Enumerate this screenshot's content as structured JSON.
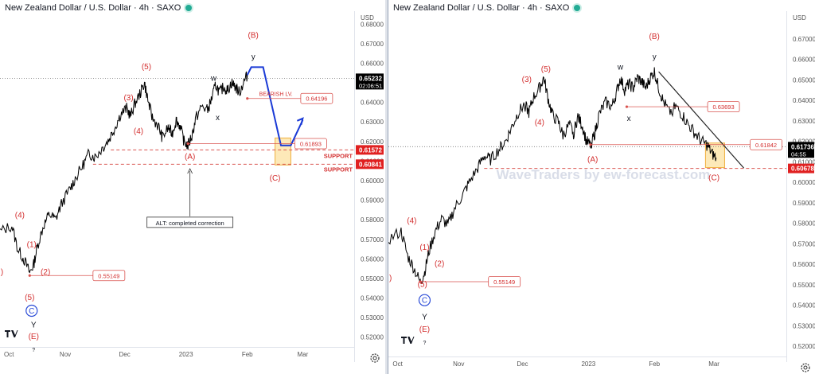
{
  "colors": {
    "wave_label": "#d32f2f",
    "price_line": "#000000",
    "projection": "#1a3ad6",
    "badge_black": "#000000",
    "badge_red": "#e02020",
    "box_fill": "#fde9b8",
    "box_stroke": "#f0b040",
    "support": "#d9534f",
    "trendline": "#222222",
    "zone_label": "#d32f2f",
    "circle": "#2a4bd7",
    "live": "#22ab94"
  },
  "chart_data": [
    {
      "type": "line",
      "title": "New Zealand Dollar / U.S. Dollar · 4h · SAXO",
      "currency": "USD",
      "ylim": [
        0.515,
        0.685
      ],
      "y_ticks": [
        0.52,
        0.53,
        0.54,
        0.55,
        0.56,
        0.57,
        0.58,
        0.59,
        0.6,
        0.61,
        0.62,
        0.63,
        0.64,
        0.65,
        0.66,
        0.67,
        0.68
      ],
      "y_tick_labels": [
        "0.52000",
        "0.53000",
        "0.54000",
        "0.55000",
        "0.56000",
        "0.57000",
        "0.58000",
        "0.59000",
        "0.60000",
        "0.61000",
        "0.62000",
        "0.63000",
        "0.64000",
        "0.65000",
        "0.66000",
        "0.67000",
        "0.68000"
      ],
      "x_ticks": [
        {
          "x": 0,
          "label": "Oct"
        },
        {
          "x": 31,
          "label": "Nov"
        },
        {
          "x": 61,
          "label": "Dec"
        },
        {
          "x": 92,
          "label": "2023"
        },
        {
          "x": 123,
          "label": "Feb"
        },
        {
          "x": 151,
          "label": "Mar"
        }
      ],
      "xlim": [
        -2,
        177
      ],
      "series": [
        {
          "values": [
            [
              -2,
              0.574
            ],
            [
              4,
              0.577
            ],
            [
              7,
              0.565
            ],
            [
              10,
              0.56
            ],
            [
              13,
              0.553
            ],
            [
              15,
              0.557
            ],
            [
              17,
              0.567
            ],
            [
              20,
              0.577
            ],
            [
              23,
              0.583
            ],
            [
              26,
              0.58
            ],
            [
              29,
              0.588
            ],
            [
              33,
              0.595
            ],
            [
              36,
              0.601
            ],
            [
              40,
              0.608
            ],
            [
              43,
              0.614
            ],
            [
              46,
              0.612
            ],
            [
              50,
              0.617
            ],
            [
              53,
              0.621
            ],
            [
              56,
              0.627
            ],
            [
              59,
              0.634
            ],
            [
              62,
              0.637
            ],
            [
              64,
              0.633
            ],
            [
              66,
              0.639
            ],
            [
              69,
              0.645
            ],
            [
              71,
              0.65
            ],
            [
              73,
              0.64
            ],
            [
              75,
              0.632
            ],
            [
              78,
              0.628
            ],
            [
              80,
              0.622
            ],
            [
              83,
              0.627
            ],
            [
              85,
              0.624
            ],
            [
              87,
              0.631
            ],
            [
              89,
              0.628
            ],
            [
              91,
              0.62
            ],
            [
              93,
              0.618
            ],
            [
              95,
              0.623
            ],
            [
              97,
              0.632
            ],
            [
              100,
              0.638
            ],
            [
              103,
              0.636
            ],
            [
              105,
              0.642
            ],
            [
              107,
              0.649
            ],
            [
              109,
              0.645
            ],
            [
              111,
              0.648
            ],
            [
              113,
              0.646
            ],
            [
              115,
              0.65
            ],
            [
              117,
              0.648
            ],
            [
              119,
              0.645
            ],
            [
              121,
              0.65
            ],
            [
              123,
              0.654
            ]
          ]
        }
      ],
      "projection_path": [
        [
          123,
          0.654
        ],
        [
          125,
          0.658
        ],
        [
          131,
          0.658
        ],
        [
          140,
          0.618
        ],
        [
          145,
          0.618
        ],
        [
          151,
          0.631
        ]
      ],
      "price_badges": [
        {
          "label": "0.65232",
          "sub": "02:06:51",
          "value": 0.6523,
          "style": "black"
        },
        {
          "label": "0.61572",
          "value": 0.6157,
          "style": "red"
        },
        {
          "label": "0.60841",
          "value": 0.6084,
          "style": "red"
        }
      ],
      "level_labels": [
        {
          "label": "BEARISH LV.",
          "value": 0.642,
          "x": 129
        },
        {
          "label": "0.64196",
          "value": 0.642,
          "x": 150
        },
        {
          "label": "0.61893",
          "value": 0.6189,
          "x": 147
        },
        {
          "label": "0.55149",
          "value": 0.5515,
          "x": 45
        }
      ],
      "support_lines": [
        {
          "label": "SUPPORT",
          "value": 0.6157,
          "x0": 54
        },
        {
          "label": "SUPPORT",
          "value": 0.6084,
          "x0": 45
        }
      ],
      "target_box": {
        "x0": 137,
        "x1": 145,
        "y0": 0.608,
        "y1": 0.6218
      },
      "wave_labels": [
        {
          "text": "(B)",
          "x": 126,
          "y": 0.673,
          "color": "red"
        },
        {
          "text": "y",
          "x": 126,
          "y": 0.662,
          "color": "black"
        },
        {
          "text": "w",
          "x": 106,
          "y": 0.651,
          "color": "black"
        },
        {
          "text": "(5)",
          "x": 72,
          "y": 0.657,
          "color": "red"
        },
        {
          "text": "(3)",
          "x": 63,
          "y": 0.641,
          "color": "red"
        },
        {
          "text": "(4)",
          "x": 68,
          "y": 0.624,
          "color": "red"
        },
        {
          "text": "x",
          "x": 108,
          "y": 0.631,
          "color": "black"
        },
        {
          "text": "(A)",
          "x": 94,
          "y": 0.611,
          "color": "red"
        },
        {
          "text": "(C)",
          "x": 137,
          "y": 0.6,
          "color": "red"
        },
        {
          "text": "(4)",
          "x": 8,
          "y": 0.581,
          "color": "red"
        },
        {
          "text": "(1)",
          "x": 14,
          "y": 0.566,
          "color": "red"
        },
        {
          "text": "(2)",
          "x": 21,
          "y": 0.552,
          "color": "red"
        },
        {
          "text": "(5)",
          "x": 13,
          "y": 0.539,
          "color": "red"
        },
        {
          "text": "Y",
          "x": 15,
          "y": 0.525,
          "color": "black"
        },
        {
          "text": "(E)",
          "x": 15,
          "y": 0.519,
          "color": "red"
        },
        {
          "text": ")",
          "x": -1,
          "y": 0.552,
          "color": "red"
        }
      ],
      "circle_label": {
        "text": "C",
        "x": 14,
        "y": 0.5335
      },
      "annotation": {
        "text": "ALT: completed correction",
        "x": 94,
        "y": 0.5785,
        "arrow_to": 0.6065
      },
      "below_e": "?"
    },
    {
      "type": "line",
      "title": "New Zealand Dollar / U.S. Dollar · 4h · SAXO",
      "currency": "USD",
      "watermark": "WaveTraders by ew-forecast.com",
      "ylim": [
        0.515,
        0.682
      ],
      "y_ticks": [
        0.52,
        0.53,
        0.54,
        0.55,
        0.56,
        0.57,
        0.58,
        0.59,
        0.6,
        0.61,
        0.62,
        0.63,
        0.64,
        0.65,
        0.66,
        0.67,
        0.68
      ],
      "y_tick_labels": [
        "0.52000",
        "0.53000",
        "0.54000",
        "0.55000",
        "0.56000",
        "0.57000",
        "0.58000",
        "0.59000",
        "0.60000",
        "0.61000",
        "0.62000",
        "0.63000",
        "0.64000",
        "0.65000",
        "0.66000",
        "0.67000",
        "0.68000"
      ],
      "x_ticks": [
        {
          "x": 0,
          "label": "Oct"
        },
        {
          "x": 31,
          "label": "Nov"
        },
        {
          "x": 61,
          "label": "Dec"
        },
        {
          "x": 92,
          "label": "2023"
        },
        {
          "x": 123,
          "label": "Feb"
        },
        {
          "x": 151,
          "label": "Mar"
        }
      ],
      "xlim": [
        -2,
        185
      ],
      "series": [
        {
          "values": [
            [
              -2,
              0.572
            ],
            [
              4,
              0.576
            ],
            [
              7,
              0.564
            ],
            [
              10,
              0.558
            ],
            [
              13,
              0.551
            ],
            [
              15,
              0.556
            ],
            [
              17,
              0.566
            ],
            [
              20,
              0.576
            ],
            [
              23,
              0.582
            ],
            [
              26,
              0.579
            ],
            [
              29,
              0.587
            ],
            [
              33,
              0.594
            ],
            [
              36,
              0.6
            ],
            [
              40,
              0.607
            ],
            [
              43,
              0.613
            ],
            [
              46,
              0.611
            ],
            [
              50,
              0.616
            ],
            [
              53,
              0.62
            ],
            [
              56,
              0.627
            ],
            [
              59,
              0.634
            ],
            [
              62,
              0.638
            ],
            [
              64,
              0.634
            ],
            [
              66,
              0.641
            ],
            [
              69,
              0.646
            ],
            [
              71,
              0.651
            ],
            [
              73,
              0.641
            ],
            [
              75,
              0.633
            ],
            [
              78,
              0.629
            ],
            [
              80,
              0.623
            ],
            [
              83,
              0.628
            ],
            [
              85,
              0.624
            ],
            [
              87,
              0.632
            ],
            [
              89,
              0.628
            ],
            [
              91,
              0.62
            ],
            [
              93,
              0.618
            ],
            [
              95,
              0.624
            ],
            [
              97,
              0.633
            ],
            [
              100,
              0.639
            ],
            [
              103,
              0.637
            ],
            [
              105,
              0.643
            ],
            [
              107,
              0.651
            ],
            [
              109,
              0.645
            ],
            [
              111,
              0.648
            ],
            [
              113,
              0.646
            ],
            [
              115,
              0.651
            ],
            [
              117,
              0.649
            ],
            [
              119,
              0.646
            ],
            [
              121,
              0.651
            ],
            [
              123,
              0.654
            ],
            [
              125,
              0.646
            ],
            [
              127,
              0.64
            ],
            [
              130,
              0.634
            ],
            [
              133,
              0.637
            ],
            [
              136,
              0.633
            ],
            [
              139,
              0.628
            ],
            [
              142,
              0.624
            ],
            [
              145,
              0.62
            ],
            [
              148,
              0.618
            ],
            [
              150,
              0.614
            ],
            [
              152,
              0.612
            ]
          ]
        }
      ],
      "trendline": [
        [
          125,
          0.654
        ],
        [
          165,
          0.607
        ]
      ],
      "price_badges": [
        {
          "label": "0.61736",
          "sub": "04:55",
          "value": 0.6174,
          "style": "black"
        },
        {
          "label": "0.60678",
          "value": 0.6068,
          "style": "red"
        }
      ],
      "level_labels": [
        {
          "label": "0.63693",
          "value": 0.6369,
          "x": 148
        },
        {
          "label": "0.61842",
          "value": 0.6184,
          "x": 168
        },
        {
          "label": "0.55149",
          "value": 0.5515,
          "x": 45
        }
      ],
      "support_lines": [
        {
          "label": "",
          "value": 0.6068,
          "x0": 43
        }
      ],
      "target_box": {
        "x0": 147,
        "x1": 156,
        "y0": 0.6072,
        "y1": 0.6192
      },
      "wave_labels": [
        {
          "text": "(B)",
          "x": 123,
          "y": 0.67,
          "color": "red"
        },
        {
          "text": "y",
          "x": 123,
          "y": 0.66,
          "color": "black"
        },
        {
          "text": "w",
          "x": 107,
          "y": 0.655,
          "color": "black"
        },
        {
          "text": "(5)",
          "x": 72,
          "y": 0.654,
          "color": "red"
        },
        {
          "text": "(3)",
          "x": 63,
          "y": 0.649,
          "color": "red"
        },
        {
          "text": "(4)",
          "x": 69,
          "y": 0.628,
          "color": "red"
        },
        {
          "text": "x",
          "x": 111,
          "y": 0.63,
          "color": "black"
        },
        {
          "text": "(A)",
          "x": 94,
          "y": 0.61,
          "color": "red"
        },
        {
          "text": "(C)",
          "x": 151,
          "y": 0.601,
          "color": "red"
        },
        {
          "text": "(4)",
          "x": 9,
          "y": 0.58,
          "color": "red"
        },
        {
          "text": "(1)",
          "x": 15,
          "y": 0.567,
          "color": "red"
        },
        {
          "text": "(2)",
          "x": 22,
          "y": 0.559,
          "color": "red"
        },
        {
          "text": "(5)",
          "x": 14,
          "y": 0.549,
          "color": "red"
        },
        {
          "text": "Y",
          "x": 15,
          "y": 0.533,
          "color": "black"
        },
        {
          "text": "(E)",
          "x": 15,
          "y": 0.527,
          "color": "red"
        },
        {
          "text": ")",
          "x": -1,
          "y": 0.552,
          "color": "red"
        }
      ],
      "circle_label": {
        "text": "C",
        "x": 15,
        "y": 0.5425
      },
      "below_e": "?"
    }
  ]
}
